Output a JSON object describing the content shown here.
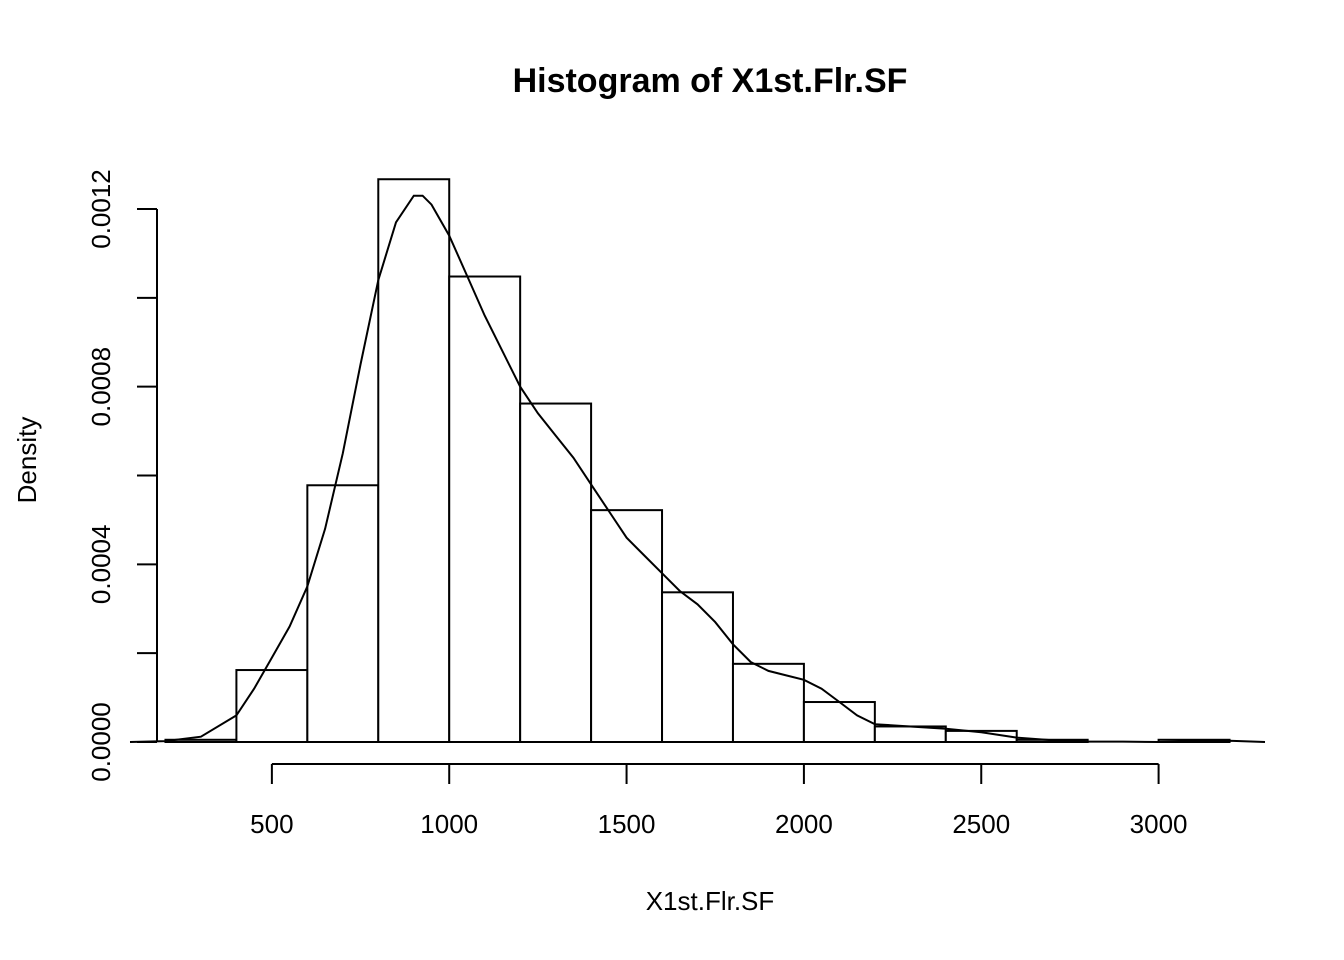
{
  "chart_data": {
    "type": "bar",
    "title": "Histogram of X1st.Flr.SF",
    "xlabel": "X1st.Flr.SF",
    "ylabel": "Density",
    "xlim": [
      100,
      3300
    ],
    "ylim": [
      0,
      0.0012
    ],
    "xticks": [
      500,
      1000,
      1500,
      2000,
      2500,
      3000
    ],
    "xtick_labels": [
      "500",
      "1000",
      "1500",
      "2000",
      "2500",
      "3000"
    ],
    "yticks": [
      0,
      0.0002,
      0.0004,
      0.0006,
      0.0008,
      0.001,
      0.0012
    ],
    "ytick_labels": [
      "0.0000",
      "",
      "0.0004",
      "",
      "0.0008",
      "",
      "0.0012"
    ],
    "bins": [
      {
        "x0": 200,
        "x1": 400,
        "density": 5e-06
      },
      {
        "x0": 400,
        "x1": 600,
        "density": 0.000162
      },
      {
        "x0": 600,
        "x1": 800,
        "density": 0.000578
      },
      {
        "x0": 800,
        "x1": 1000,
        "density": 0.001267
      },
      {
        "x0": 1000,
        "x1": 1200,
        "density": 0.001048
      },
      {
        "x0": 1200,
        "x1": 1400,
        "density": 0.000762
      },
      {
        "x0": 1400,
        "x1": 1600,
        "density": 0.000522
      },
      {
        "x0": 1600,
        "x1": 1800,
        "density": 0.000337
      },
      {
        "x0": 1800,
        "x1": 2000,
        "density": 0.000176
      },
      {
        "x0": 2000,
        "x1": 2200,
        "density": 9e-05
      },
      {
        "x0": 2200,
        "x1": 2400,
        "density": 3.5e-05
      },
      {
        "x0": 2400,
        "x1": 2600,
        "density": 2.5e-05
      },
      {
        "x0": 2600,
        "x1": 2800,
        "density": 5e-06
      },
      {
        "x0": 2800,
        "x1": 3000,
        "density": 0
      },
      {
        "x0": 3000,
        "x1": 3200,
        "density": 5e-06
      }
    ],
    "density_curve": {
      "x": [
        100,
        200,
        300,
        400,
        450,
        500,
        550,
        600,
        650,
        700,
        750,
        800,
        850,
        900,
        925,
        950,
        1000,
        1050,
        1100,
        1150,
        1200,
        1250,
        1300,
        1350,
        1400,
        1450,
        1500,
        1550,
        1600,
        1650,
        1700,
        1750,
        1800,
        1850,
        1900,
        1950,
        2000,
        2050,
        2100,
        2150,
        2200,
        2300,
        2400,
        2500,
        2600,
        2700,
        2800,
        2900,
        3000,
        3100,
        3200,
        3300
      ],
      "y": [
        0.0,
        2e-06,
        1.2e-05,
        6e-05,
        0.00012,
        0.00019,
        0.00026,
        0.00035,
        0.00048,
        0.00065,
        0.00085,
        0.00104,
        0.00117,
        0.00123,
        0.00123,
        0.00121,
        0.00114,
        0.00105,
        0.00096,
        0.00088,
        0.0008,
        0.00074,
        0.00069,
        0.00064,
        0.00058,
        0.00052,
        0.00046,
        0.00042,
        0.00038,
        0.00034,
        0.00031,
        0.00027,
        0.00022,
        0.00018,
        0.00016,
        0.00015,
        0.00014,
        0.00012,
        9e-05,
        6e-05,
        4e-05,
        3.5e-05,
        3e-05,
        2.2e-05,
        1e-05,
        4e-06,
        1e-06,
        1e-06,
        0.0,
        2e-06,
        3e-06,
        0.0
      ]
    },
    "grid": false,
    "legend": false
  }
}
